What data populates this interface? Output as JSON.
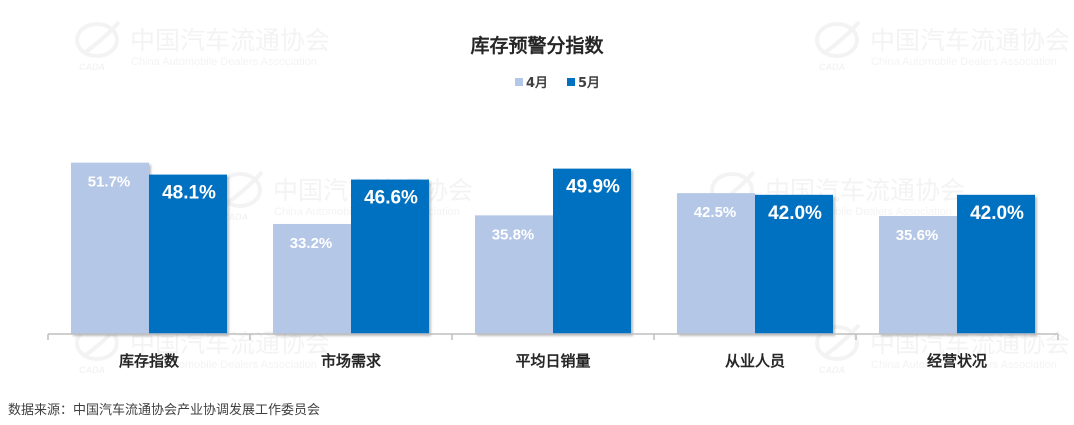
{
  "watermark": {
    "cn": "中国汽车流通协会",
    "en": "China Automobile Dealers Association",
    "logo": "CADA"
  },
  "colors": {
    "apr": "#b4c7e7",
    "may": "#0070c0",
    "axis": "#bfbfbf",
    "title": "#262626"
  },
  "source_text": "数据来源：中国汽车流通协会产业协调发展工作委员会",
  "chart_data": {
    "type": "bar",
    "title": "库存预警分指数",
    "categories": [
      "库存指数",
      "市场需求",
      "平均日销量",
      "从业人员",
      "经营状况"
    ],
    "series": [
      {
        "name": "4月",
        "values": [
          51.7,
          33.2,
          35.8,
          42.5,
          35.6
        ],
        "labels": [
          "51.7%",
          "33.2%",
          "35.8%",
          "42.5%",
          "35.6%"
        ]
      },
      {
        "name": "5月",
        "values": [
          48.1,
          46.6,
          49.9,
          42.0,
          42.0
        ],
        "labels": [
          "48.1%",
          "46.6%",
          "49.9%",
          "42.0%",
          "42.0%"
        ]
      }
    ],
    "ylim": [
      0,
      52.5
    ],
    "legend": "top-center",
    "grid": false
  }
}
